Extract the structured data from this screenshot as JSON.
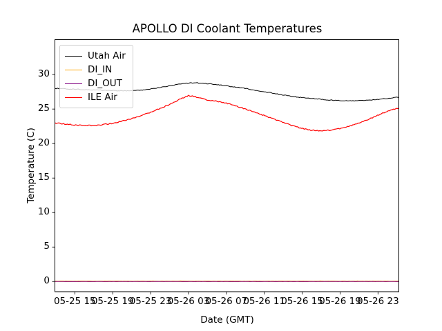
{
  "figure": {
    "background": "#ffffff",
    "axes_color": "#000000"
  },
  "chart_data": {
    "type": "line",
    "title": "APOLLO DI Coolant Temperatures",
    "xlabel": "Date (GMT)",
    "ylabel": "Temperature (C)",
    "grid": false,
    "legend_position": "upper left",
    "x_unit": "hours since 05-25 00:00 GMT",
    "x_axis": {
      "tick_hours": [
        15,
        19,
        23,
        27,
        31,
        35,
        39,
        43,
        47
      ],
      "tick_labels": [
        "05-25 15",
        "05-25 19",
        "05-25 23",
        "05-26 03",
        "05-26 07",
        "05-26 11",
        "05-26 15",
        "05-26 19",
        "05-26 23"
      ],
      "range_hours": [
        12.9,
        49.2
      ]
    },
    "y_axis": {
      "ticks": [
        0,
        5,
        10,
        15,
        20,
        25,
        30
      ],
      "range": [
        -1.47,
        35.06
      ]
    },
    "series": [
      {
        "name": "Utah Air",
        "color": "#000000",
        "points": [
          [
            12.9,
            28.0
          ],
          [
            14.0,
            27.92
          ],
          [
            15.5,
            27.85
          ],
          [
            17.0,
            27.78
          ],
          [
            18.5,
            27.7
          ],
          [
            20.0,
            27.65
          ],
          [
            21.0,
            27.65
          ],
          [
            22.0,
            27.75
          ],
          [
            23.2,
            27.95
          ],
          [
            24.5,
            28.25
          ],
          [
            25.8,
            28.55
          ],
          [
            26.9,
            28.75
          ],
          [
            27.8,
            28.8
          ],
          [
            28.8,
            28.72
          ],
          [
            30.0,
            28.55
          ],
          [
            31.3,
            28.3
          ],
          [
            32.7,
            28.05
          ],
          [
            34.2,
            27.7
          ],
          [
            35.7,
            27.35
          ],
          [
            37.2,
            27.0
          ],
          [
            38.7,
            26.7
          ],
          [
            40.2,
            26.5
          ],
          [
            41.7,
            26.33
          ],
          [
            43.2,
            26.22
          ],
          [
            44.5,
            26.2
          ],
          [
            45.8,
            26.28
          ],
          [
            47.2,
            26.42
          ],
          [
            48.3,
            26.58
          ],
          [
            49.2,
            26.72
          ]
        ]
      },
      {
        "name": "DI_IN",
        "color": "#ffa500",
        "points": [
          [
            12.9,
            0.07
          ],
          [
            49.2,
            0.07
          ]
        ]
      },
      {
        "name": "DI_OUT",
        "color": "#800080",
        "points": [
          [
            12.9,
            0.0
          ],
          [
            49.2,
            0.0
          ]
        ]
      },
      {
        "name": "ILE Air",
        "color": "#ff0000",
        "points": [
          [
            12.9,
            23.0
          ],
          [
            13.8,
            22.85
          ],
          [
            14.8,
            22.72
          ],
          [
            15.9,
            22.62
          ],
          [
            17.0,
            22.62
          ],
          [
            18.0,
            22.75
          ],
          [
            19.0,
            22.95
          ],
          [
            20.0,
            23.25
          ],
          [
            21.1,
            23.65
          ],
          [
            22.2,
            24.15
          ],
          [
            23.3,
            24.7
          ],
          [
            24.3,
            25.25
          ],
          [
            25.3,
            25.85
          ],
          [
            26.2,
            26.5
          ],
          [
            27.0,
            26.95
          ],
          [
            27.7,
            26.8
          ],
          [
            28.4,
            26.5
          ],
          [
            29.1,
            26.25
          ],
          [
            29.9,
            26.15
          ],
          [
            30.7,
            25.95
          ],
          [
            31.7,
            25.6
          ],
          [
            32.8,
            25.1
          ],
          [
            34.0,
            24.55
          ],
          [
            35.2,
            23.95
          ],
          [
            36.4,
            23.35
          ],
          [
            37.6,
            22.75
          ],
          [
            38.8,
            22.25
          ],
          [
            39.9,
            21.95
          ],
          [
            41.0,
            21.85
          ],
          [
            42.0,
            21.95
          ],
          [
            43.1,
            22.2
          ],
          [
            44.2,
            22.6
          ],
          [
            45.3,
            23.15
          ],
          [
            46.4,
            23.75
          ],
          [
            47.5,
            24.4
          ],
          [
            48.5,
            24.9
          ],
          [
            49.2,
            25.15
          ]
        ]
      }
    ]
  }
}
